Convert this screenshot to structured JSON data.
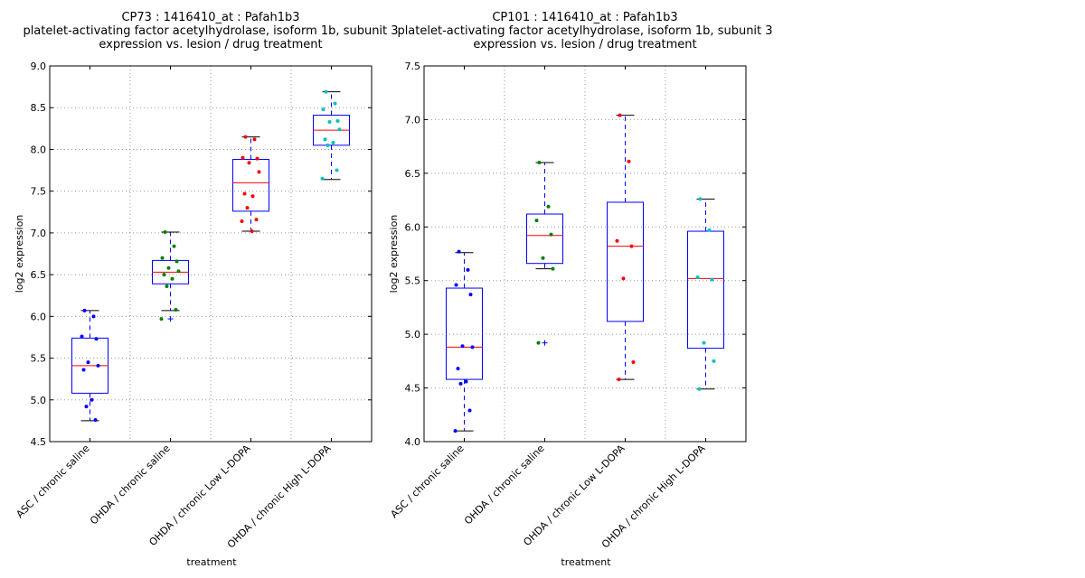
{
  "chart_data": [
    {
      "type": "box",
      "title": [
        "CP73 : 1416410_at : Pafah1b3",
        "platelet-activating factor acetylhydrolase, isoform 1b, subunit 3",
        "expression vs. lesion / drug treatment"
      ],
      "xlabel": "treatment",
      "ylabel": "log2 expression",
      "ylim": [
        4.5,
        9.0
      ],
      "yticks": [
        "4.5",
        "5.0",
        "5.5",
        "6.0",
        "6.5",
        "7.0",
        "7.5",
        "8.0",
        "8.5",
        "9.0"
      ],
      "grid": true,
      "categories": [
        "ASC / chronic saline",
        "OHDA / chronic saline",
        "OHDA / chronic Low L-DOPA",
        "OHDA / chronic High L-DOPA"
      ],
      "boxes": [
        {
          "whisker_low": 4.75,
          "q1": 5.08,
          "median": 5.41,
          "q3": 5.74,
          "whisker_high": 6.07,
          "outliers": []
        },
        {
          "whisker_low": 6.07,
          "q1": 6.39,
          "median": 6.53,
          "q3": 6.67,
          "whisker_high": 7.01,
          "outliers": [
            5.97
          ]
        },
        {
          "whisker_low": 7.02,
          "q1": 7.26,
          "median": 7.6,
          "q3": 7.88,
          "whisker_high": 8.15,
          "outliers": []
        },
        {
          "whisker_low": 7.64,
          "q1": 8.05,
          "median": 8.23,
          "q3": 8.41,
          "whisker_high": 8.69,
          "outliers": []
        }
      ],
      "points": [
        [
          6.07,
          6.0,
          5.76,
          5.73,
          5.45,
          5.41,
          5.36,
          5.0,
          4.92,
          4.76
        ],
        [
          7.01,
          6.84,
          6.7,
          6.66,
          6.58,
          6.54,
          6.5,
          6.45,
          6.36,
          6.08,
          5.97
        ],
        [
          8.15,
          8.12,
          7.9,
          7.89,
          7.84,
          7.73,
          7.47,
          7.44,
          7.3,
          7.16,
          7.14,
          7.02
        ],
        [
          8.69,
          8.55,
          8.48,
          8.34,
          8.33,
          8.24,
          8.12,
          8.08,
          8.05,
          7.75,
          7.65
        ]
      ]
    },
    {
      "type": "box",
      "title": [
        "CP101 : 1416410_at : Pafah1b3",
        "platelet-activating factor acetylhydrolase, isoform 1b, subunit 3",
        "expression vs. lesion / drug treatment"
      ],
      "xlabel": "treatment",
      "ylabel": "log2 expression",
      "ylim": [
        4.0,
        7.5
      ],
      "yticks": [
        "4.0",
        "4.5",
        "5.0",
        "5.5",
        "6.0",
        "6.5",
        "7.0",
        "7.5"
      ],
      "grid": true,
      "categories": [
        "ASC / chronic saline",
        "OHDA / chronic saline",
        "OHDA / chronic Low L-DOPA",
        "OHDA / chronic High L-DOPA"
      ],
      "boxes": [
        {
          "whisker_low": 4.1,
          "q1": 4.58,
          "median": 4.88,
          "q3": 5.43,
          "whisker_high": 5.76,
          "outliers": []
        },
        {
          "whisker_low": 5.61,
          "q1": 5.66,
          "median": 5.92,
          "q3": 6.12,
          "whisker_high": 6.6,
          "outliers": [
            4.92
          ]
        },
        {
          "whisker_low": 4.58,
          "q1": 5.12,
          "median": 5.82,
          "q3": 6.23,
          "whisker_high": 7.04,
          "outliers": []
        },
        {
          "whisker_low": 4.49,
          "q1": 4.87,
          "median": 5.52,
          "q3": 5.96,
          "whisker_high": 6.26,
          "outliers": []
        }
      ],
      "points": [
        [
          5.77,
          5.6,
          5.46,
          5.37,
          4.89,
          4.88,
          4.68,
          4.56,
          4.54,
          4.29,
          4.1
        ],
        [
          6.6,
          6.19,
          6.06,
          5.93,
          5.71,
          5.61,
          4.92
        ],
        [
          7.04,
          6.61,
          5.87,
          5.82,
          5.52,
          4.74,
          4.58
        ],
        [
          6.26,
          5.97,
          5.53,
          5.51,
          4.92,
          4.75,
          4.49
        ]
      ]
    }
  ],
  "colors": {
    "box": "#0000ff",
    "median": "#ff0000",
    "whisker_cap": "#000000",
    "grid": "#999999",
    "groups": [
      "#0000ff",
      "#008000",
      "#ff0000",
      "#00bfbf"
    ]
  }
}
